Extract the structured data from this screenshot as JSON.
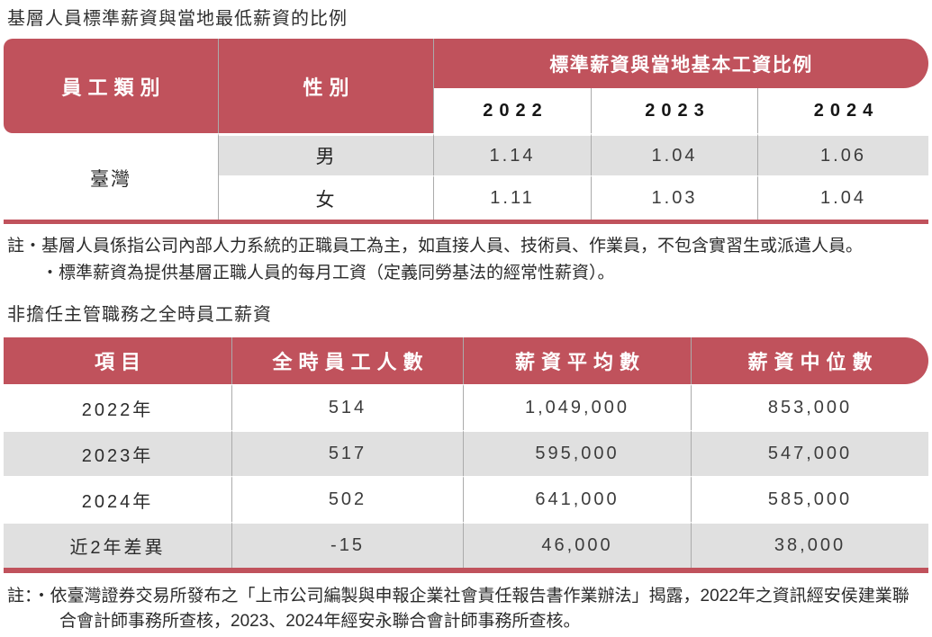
{
  "colors": {
    "accent": "#c0525c",
    "row_gray": "#e0e0e0",
    "divider": "#ababab"
  },
  "section1": {
    "title": "基層人員標準薪資與當地最低薪資的比例",
    "table": {
      "col_employee_category": "員工類別",
      "col_gender": "性別",
      "group_header": "標準薪資與當地基本工資比例",
      "years": [
        "2022",
        "2023",
        "2024"
      ],
      "region": "臺灣",
      "rows": [
        {
          "gender": "男",
          "values": [
            "1.14",
            "1.04",
            "1.06"
          ]
        },
        {
          "gender": "女",
          "values": [
            "1.11",
            "1.03",
            "1.04"
          ]
        }
      ]
    },
    "notes": [
      "註・基層人員係指公司內部人力系統的正職員工為主，如直接人員、技術員、作業員，不包含實習生或派遣人員。",
      "・標準薪資為提供基層正職人員的每月工資（定義同勞基法的經常性薪資）。"
    ]
  },
  "section2": {
    "title": "非擔任主管職務之全時員工薪資",
    "table": {
      "headers": [
        "項目",
        "全時員工人數",
        "薪資平均數",
        "薪資中位數"
      ],
      "rows": [
        {
          "label": "2022年",
          "values": [
            "514",
            "1,049,000",
            "853,000"
          ]
        },
        {
          "label": "2023年",
          "values": [
            "517",
            "595,000",
            "547,000"
          ]
        },
        {
          "label": "2024年",
          "values": [
            "502",
            "641,000",
            "585,000"
          ]
        },
        {
          "label": "近2年差異",
          "values": [
            "-15",
            "46,000",
            "38,000"
          ]
        }
      ]
    },
    "note": "註：・依臺灣證券交易所發布之「上市公司編製與申報企業社會責任報告書作業辦法」揭露，2022年之資訊經安侯建業聯合會計師事務所查核，2023、2024年經安永聯合會計師事務所查核。"
  }
}
